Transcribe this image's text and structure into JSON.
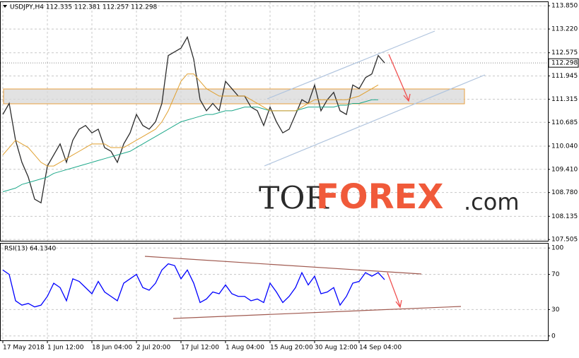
{
  "header": "USDJPY,H4  112.335 112.381 112.257 112.298",
  "watermark": {
    "parts": [
      "TOR",
      "FOREX",
      ".com"
    ]
  },
  "chart_data": [
    {
      "type": "line",
      "last_price": 112.298,
      "series": [
        {
          "color": "#2b2b2b",
          "values": [
            110.9,
            111.2,
            110.2,
            109.6,
            109.2,
            108.6,
            108.5,
            109.5,
            109.8,
            110.1,
            109.6,
            110.2,
            110.5,
            110.6,
            110.4,
            110.5,
            110.0,
            109.9,
            109.6,
            110.1,
            110.4,
            110.9,
            110.6,
            110.5,
            110.7,
            111.2,
            112.5,
            112.6,
            112.7,
            113.0,
            112.4,
            111.3,
            111.0,
            111.2,
            111.0,
            111.8,
            111.6,
            111.4,
            111.4,
            111.1,
            111.0,
            110.6,
            111.1,
            110.7,
            110.4,
            110.5,
            110.9,
            111.3,
            111.2,
            111.7,
            111.0,
            111.3,
            111.5,
            111.0,
            110.9,
            111.7,
            111.6,
            111.9,
            112.0,
            112.5,
            112.3
          ]
        },
        {
          "color": "#1ea88a",
          "values": [
            108.8,
            108.85,
            108.9,
            109.0,
            109.05,
            109.1,
            109.15,
            109.2,
            109.3,
            109.35,
            109.4,
            109.45,
            109.5,
            109.55,
            109.6,
            109.65,
            109.7,
            109.75,
            109.8,
            109.85,
            109.9,
            110.0,
            110.1,
            110.2,
            110.3,
            110.4,
            110.5,
            110.6,
            110.7,
            110.75,
            110.8,
            110.85,
            110.9,
            110.9,
            110.95,
            111.0,
            111.0,
            111.05,
            111.1,
            111.1,
            111.1,
            111.05,
            111.0,
            111.0,
            111.0,
            111.0,
            111.0,
            111.05,
            111.1,
            111.1,
            111.1,
            111.1,
            111.1,
            111.15,
            111.15,
            111.2,
            111.2,
            111.25,
            111.3,
            111.3,
            null
          ]
        },
        {
          "color": "#e0a030",
          "values": [
            109.8,
            110.0,
            110.2,
            110.1,
            110.0,
            109.8,
            109.6,
            109.5,
            109.5,
            109.6,
            109.7,
            109.8,
            109.9,
            110.0,
            110.1,
            110.1,
            110.1,
            110.0,
            110.0,
            110.0,
            110.1,
            110.2,
            110.3,
            110.4,
            110.5,
            110.7,
            111.0,
            111.4,
            111.8,
            112.0,
            112.0,
            111.8,
            111.6,
            111.5,
            111.4,
            111.4,
            111.4,
            111.4,
            111.4,
            111.3,
            111.2,
            111.1,
            111.0,
            111.0,
            111.0,
            111.0,
            111.0,
            111.1,
            111.2,
            111.3,
            111.3,
            111.3,
            111.3,
            111.3,
            111.3,
            111.35,
            111.4,
            111.5,
            111.6,
            111.7,
            null
          ]
        }
      ],
      "ylim": [
        107.47,
        113.95
      ],
      "yticks": [
        {
          "value": 113.85,
          "label": "113.850"
        },
        {
          "value": 113.22,
          "label": "113.220"
        },
        112.575,
        111.945,
        111.315,
        110.685,
        {
          "value": 110.04,
          "label": "110.040"
        },
        {
          "value": 109.41,
          "label": "109.410"
        },
        {
          "value": 108.78,
          "label": "108.780"
        },
        108.135,
        107.505
      ],
      "grid": true
    },
    {
      "type": "line",
      "title": "RSI(13) 64.1340",
      "categories": [
        "17 May 2018",
        null,
        null,
        null,
        null,
        null,
        null,
        "1 Jun 12:00",
        null,
        null,
        null,
        null,
        null,
        null,
        "18 Jun 04:00",
        null,
        null,
        null,
        null,
        null,
        null,
        "2 Jul 20:00",
        null,
        null,
        null,
        null,
        null,
        null,
        "17 Jul 12:00",
        null,
        null,
        null,
        null,
        null,
        null,
        "1 Aug 04:00",
        null,
        null,
        null,
        null,
        null,
        null,
        "15 Aug 20:00",
        null,
        null,
        null,
        null,
        null,
        null,
        "30 Aug 12:00",
        null,
        null,
        null,
        null,
        null,
        null,
        "14 Sep 04:00",
        null,
        null,
        null,
        null
      ],
      "series": [
        {
          "color": "#0000ff",
          "values": [
            75,
            70,
            40,
            35,
            37,
            33,
            35,
            45,
            60,
            55,
            40,
            65,
            62,
            55,
            48,
            62,
            50,
            45,
            40,
            60,
            65,
            70,
            55,
            52,
            60,
            75,
            82,
            80,
            65,
            75,
            60,
            38,
            42,
            50,
            48,
            58,
            48,
            45,
            45,
            40,
            42,
            38,
            60,
            50,
            38,
            45,
            55,
            72,
            58,
            68,
            48,
            50,
            55,
            35,
            45,
            60,
            62,
            72,
            68,
            72,
            64
          ]
        }
      ],
      "ylim": [
        -5,
        105
      ],
      "yticks": [
        100,
        70,
        30,
        0
      ],
      "grid": true
    }
  ]
}
